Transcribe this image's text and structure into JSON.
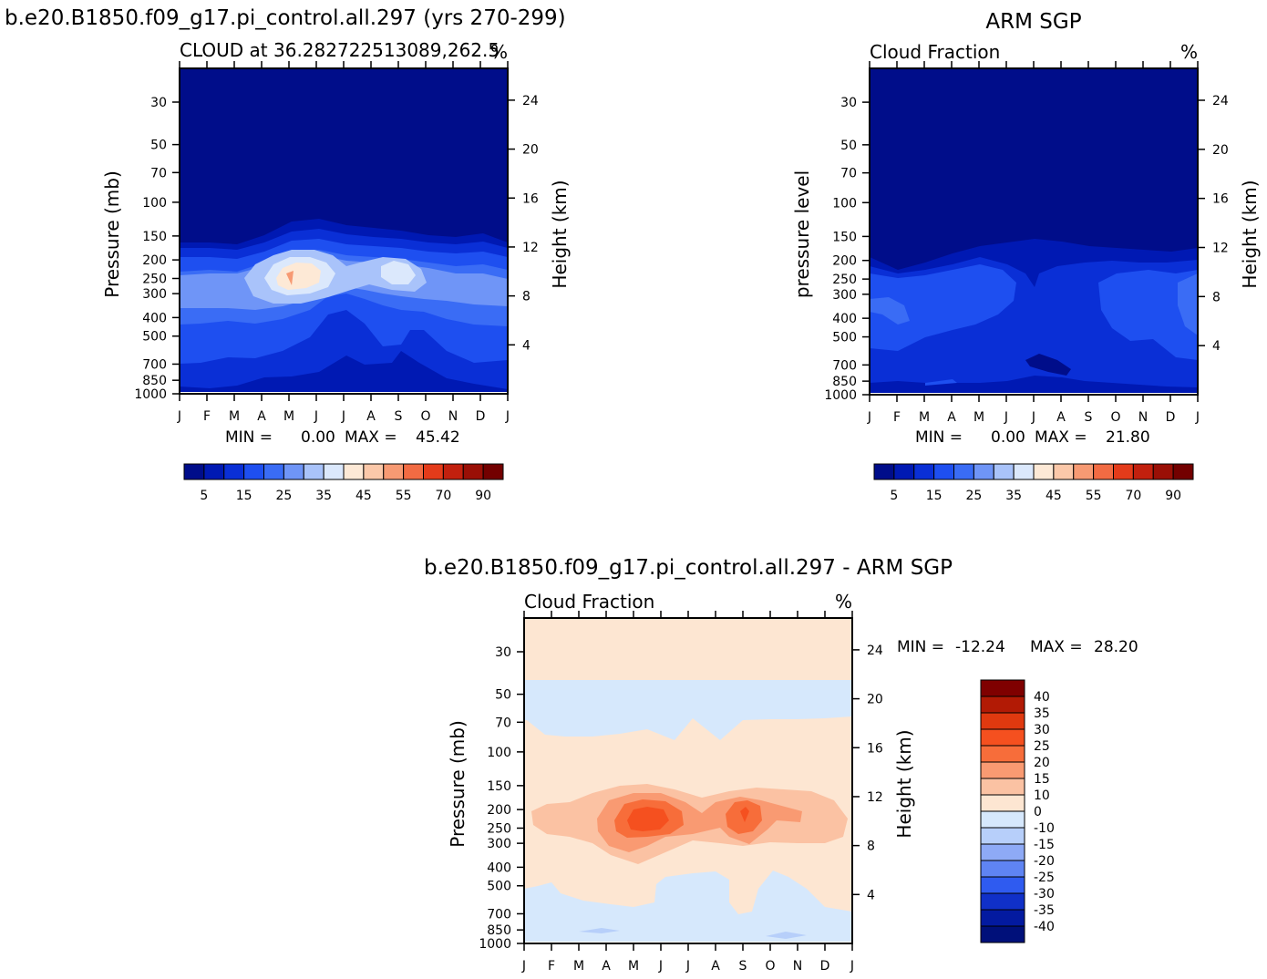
{
  "titles": {
    "model_title": "b.e20.B1850.f09_g17.pi_control.all.297 (yrs 270-299)",
    "obs_title": "ARM SGP",
    "diff_title": "b.e20.B1850.f09_g17.pi_control.all.297 - ARM SGP"
  },
  "chart_data": [
    {
      "id": "model",
      "type": "heatmap",
      "left_title": "CLOUD at 36.282722513089,262.5",
      "right_title": "%",
      "ylabel": "Pressure (mb)",
      "y2label": "Height (km)",
      "x": [
        "J",
        "F",
        "M",
        "A",
        "M",
        "J",
        "J",
        "A",
        "S",
        "O",
        "N",
        "D",
        "J"
      ],
      "pressure_ticks": [
        "30",
        "50",
        "70",
        "100",
        "150",
        "200",
        "250",
        "300",
        "400",
        "500",
        "700",
        "850",
        "1000"
      ],
      "height_ticks": [
        "24",
        "20",
        "16",
        "12",
        "8",
        "4"
      ],
      "min_label": "MIN =",
      "min_value": "0.00",
      "max_label": "MAX =",
      "max_value": "45.42",
      "colorbar_labels": [
        "5",
        "15",
        "25",
        "35",
        "45",
        "55",
        "70",
        "90"
      ],
      "colorbar_colors": [
        "#000d8a",
        "#0019b3",
        "#0a2fd6",
        "#1e4ff0",
        "#3a6cf5",
        "#6f95f7",
        "#a9c3fa",
        "#dbe8fc",
        "#fde9d6",
        "#fbc8a9",
        "#f79a73",
        "#f26b43",
        "#e43b1a",
        "#c2200e",
        "#9a0f06",
        "#730000"
      ],
      "ylim": [
        1000,
        20
      ]
    },
    {
      "id": "obs",
      "type": "heatmap",
      "left_title": "Cloud Fraction",
      "right_title": "%",
      "ylabel": "pressure level",
      "y2label": "Height (km)",
      "x": [
        "J",
        "F",
        "M",
        "A",
        "M",
        "J",
        "J",
        "A",
        "S",
        "O",
        "N",
        "D",
        "J"
      ],
      "pressure_ticks": [
        "30",
        "50",
        "70",
        "100",
        "150",
        "200",
        "250",
        "300",
        "400",
        "500",
        "700",
        "850",
        "1000"
      ],
      "height_ticks": [
        "24",
        "20",
        "16",
        "12",
        "8",
        "4"
      ],
      "min_label": "MIN =",
      "min_value": "0.00",
      "max_label": "MAX =",
      "max_value": "21.80",
      "colorbar_labels": [
        "5",
        "15",
        "25",
        "35",
        "45",
        "55",
        "70",
        "90"
      ],
      "colorbar_colors": [
        "#000d8a",
        "#0019b3",
        "#0a2fd6",
        "#1e4ff0",
        "#3a6cf5",
        "#6f95f7",
        "#a9c3fa",
        "#dbe8fc",
        "#fde9d6",
        "#fbc8a9",
        "#f79a73",
        "#f26b43",
        "#e43b1a",
        "#c2200e",
        "#9a0f06",
        "#730000"
      ],
      "ylim": [
        1000,
        20
      ]
    },
    {
      "id": "diff",
      "type": "heatmap",
      "left_title": "Cloud Fraction",
      "right_title": "%",
      "ylabel": "Pressure (mb)",
      "y2label": "Height (km)",
      "x": [
        "J",
        "F",
        "M",
        "A",
        "M",
        "J",
        "J",
        "A",
        "S",
        "O",
        "N",
        "D",
        "J"
      ],
      "pressure_ticks": [
        "30",
        "50",
        "70",
        "100",
        "150",
        "200",
        "250",
        "300",
        "400",
        "500",
        "700",
        "850",
        "1000"
      ],
      "height_ticks": [
        "24",
        "20",
        "16",
        "12",
        "8",
        "4"
      ],
      "min_label": "MIN =",
      "min_value": "-12.24",
      "max_label": "MAX =",
      "max_value": "28.20",
      "colorbar_labels": [
        "40",
        "35",
        "30",
        "25",
        "20",
        "15",
        "10",
        "0",
        "-10",
        "-15",
        "-20",
        "-25",
        "-30",
        "-35",
        "-40"
      ],
      "colorbar_colors": [
        "#7f0000",
        "#b21a05",
        "#e0390f",
        "#f5501f",
        "#f76d3a",
        "#f99a72",
        "#fbc2a3",
        "#fde6d2",
        "#d6e8fc",
        "#b7cffa",
        "#8eaaf6",
        "#5f84f3",
        "#2f5bf0",
        "#1030c8",
        "#031aa0",
        "#00107a"
      ],
      "ylim": [
        1000,
        20
      ]
    }
  ]
}
